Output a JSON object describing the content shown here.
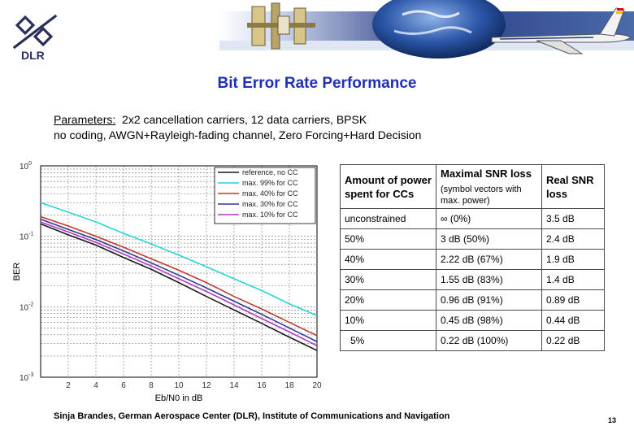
{
  "logo": {
    "text": "DLR"
  },
  "title": "Bit Error Rate Performance",
  "parameters": {
    "label": "Parameters:",
    "line1": "2x2 cancellation carriers, 12 data carriers, BPSK",
    "line2": "no coding, AWGN+Rayleigh-fading channel, Zero Forcing+Hard Decision"
  },
  "table": {
    "headers": {
      "col1": "Amount of power spent for CCs",
      "col2": "Maximal SNR loss",
      "col2_sub": "(symbol vectors with max. power)",
      "col3": "Real SNR loss"
    },
    "rows": [
      [
        "unconstrained",
        "∞ (0%)",
        "3.5 dB"
      ],
      [
        "50%",
        "3 dB (50%)",
        "2.4 dB"
      ],
      [
        "40%",
        "2.22 dB (67%)",
        "1.9 dB"
      ],
      [
        "30%",
        "1.55 dB (83%)",
        "1.4 dB"
      ],
      [
        "20%",
        "0.96 dB (91%)",
        "0.89 dB"
      ],
      [
        "10%",
        "0.45 dB (98%)",
        "0.44 dB"
      ],
      [
        "5%",
        "0.22 dB (100%)",
        "0.22 dB"
      ]
    ]
  },
  "footer": "Sinja Brandes, German Aerospace Center (DLR), Institute of Communications and Navigation",
  "page_number": "13",
  "chart_data": {
    "type": "line",
    "xlabel": "Eb/N0 in dB",
    "ylabel": "BER",
    "xlim": [
      0,
      20
    ],
    "ylim": [
      0.001,
      1
    ],
    "yscale": "log",
    "xticks": [
      2,
      4,
      6,
      8,
      10,
      12,
      14,
      16,
      18,
      20
    ],
    "ytick_labels": [
      "10^0",
      "10^-1",
      "10^-2",
      "10^-3"
    ],
    "grid": true,
    "legend_position": "top-right",
    "series": [
      {
        "name": "reference, no CC",
        "color": "#1a1a1a",
        "x": [
          0,
          2,
          4,
          6,
          8,
          10,
          12,
          14,
          16,
          18,
          20
        ],
        "y": [
          0.15,
          0.105,
          0.075,
          0.05,
          0.034,
          0.022,
          0.014,
          0.009,
          0.0058,
          0.0037,
          0.0024
        ]
      },
      {
        "name": "max. 99% for CC",
        "color": "#2ad4d4",
        "x": [
          0,
          2,
          4,
          6,
          8,
          10,
          12,
          14,
          16,
          18,
          20
        ],
        "y": [
          0.3,
          0.22,
          0.16,
          0.11,
          0.078,
          0.054,
          0.037,
          0.025,
          0.017,
          0.011,
          0.0075
        ]
      },
      {
        "name": "max. 40% for CC",
        "color": "#c0392b",
        "x": [
          0,
          2,
          4,
          6,
          8,
          10,
          12,
          14,
          16,
          18,
          20
        ],
        "y": [
          0.19,
          0.14,
          0.1,
          0.07,
          0.048,
          0.033,
          0.022,
          0.014,
          0.0093,
          0.006,
          0.0039
        ]
      },
      {
        "name": "max. 30% for CC",
        "color": "#2e3a8c",
        "x": [
          0,
          2,
          4,
          6,
          8,
          10,
          12,
          14,
          16,
          18,
          20
        ],
        "y": [
          0.175,
          0.125,
          0.09,
          0.062,
          0.042,
          0.028,
          0.0185,
          0.012,
          0.0078,
          0.005,
          0.0032
        ]
      },
      {
        "name": "max. 10% for CC",
        "color": "#b03cc6",
        "x": [
          0,
          2,
          4,
          6,
          8,
          10,
          12,
          14,
          16,
          18,
          20
        ],
        "y": [
          0.16,
          0.115,
          0.082,
          0.056,
          0.038,
          0.025,
          0.0165,
          0.0106,
          0.0068,
          0.0044,
          0.0028
        ]
      }
    ]
  }
}
